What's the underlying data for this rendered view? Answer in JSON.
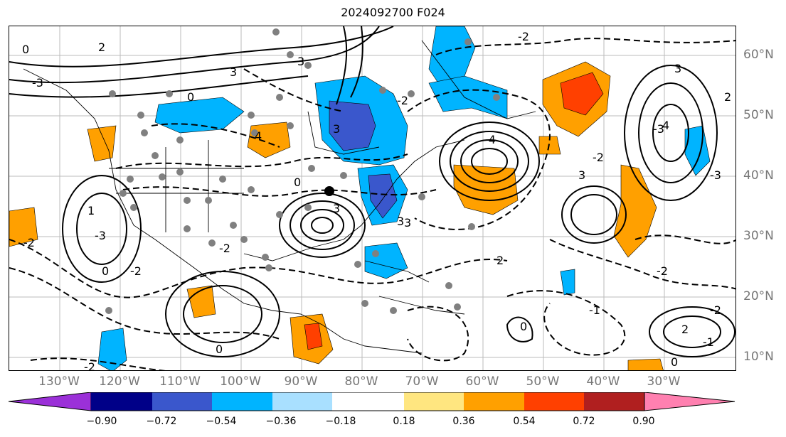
{
  "title": "2024092700 F024",
  "longitude_labels": [
    "130°W",
    "120°W",
    "110°W",
    "100°W",
    "90°W",
    "80°W",
    "70°W",
    "60°W",
    "50°W",
    "40°W",
    "30°W"
  ],
  "latitude_labels": [
    "60°N",
    "50°N",
    "40°N",
    "30°N",
    "20°N",
    "10°N"
  ],
  "colorbar": {
    "ticks": [
      "−0.90",
      "−0.72",
      "−0.54",
      "−0.36",
      "−0.18",
      "0.18",
      "0.36",
      "0.54",
      "0.72",
      "0.90"
    ],
    "colors": [
      "#9b30d8",
      "#000088",
      "#3a57cc",
      "#00b4ff",
      "#a9e0ff",
      "#ffffff",
      "#ffe680",
      "#ffa000",
      "#ff4000",
      "#b01f1f",
      "#ff80b0"
    ]
  },
  "contour_labels": [
    "0",
    "2",
    "3",
    "-2",
    "-3",
    "0",
    "3",
    "3",
    "-2",
    "3",
    "-3",
    "4",
    "-4",
    "3",
    "-3",
    "2",
    "-2",
    "3",
    "0",
    "3",
    "-2",
    "4",
    "-2",
    "0",
    "0",
    "1",
    "-1",
    "-2",
    "-1",
    "2",
    "-2",
    "0",
    "-2",
    "3",
    "-3",
    "0",
    "2",
    "-2"
  ],
  "shading_colors": {
    "positive": "#ffa000",
    "strong_positive": "#ff4000",
    "negative": "#00b4ff",
    "strong_negative": "#3a57cc"
  }
}
